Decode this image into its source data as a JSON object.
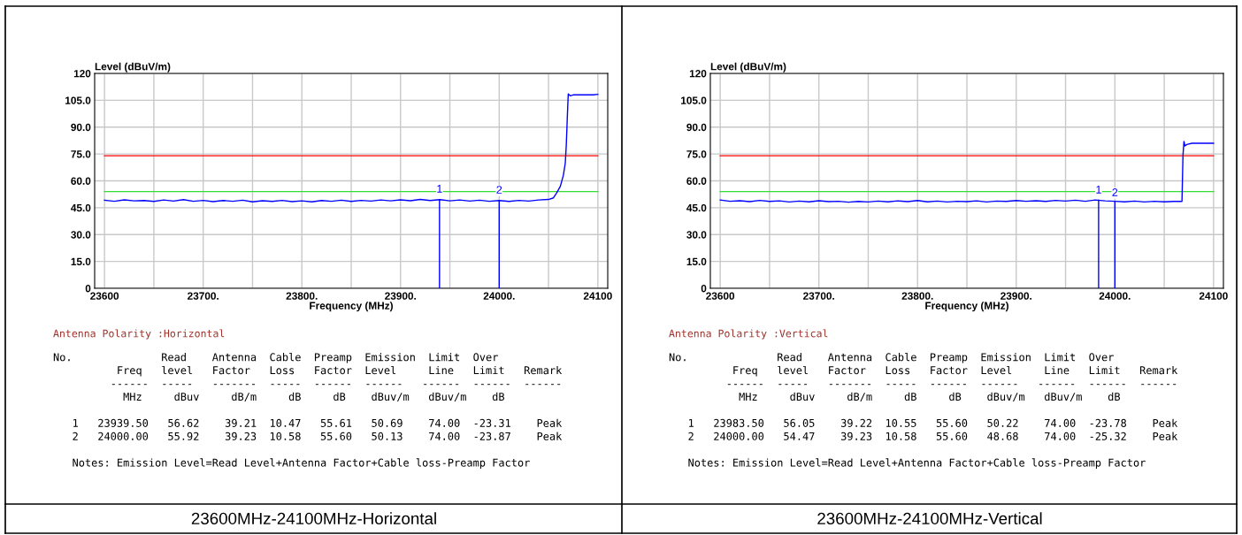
{
  "chart_data": [
    {
      "type": "line",
      "xlabel": "Frequency (MHz)",
      "ylabel": "Level (dBuV/m)",
      "x": [
        23600,
        23610,
        23620,
        23630,
        23640,
        23650,
        23660,
        23670,
        23680,
        23690,
        23700,
        23710,
        23720,
        23730,
        23740,
        23750,
        23760,
        23770,
        23780,
        23790,
        23800,
        23810,
        23820,
        23830,
        23840,
        23850,
        23860,
        23870,
        23880,
        23890,
        23900,
        23910,
        23920,
        23930,
        23940,
        23950,
        23960,
        23970,
        23980,
        23990,
        24000,
        24010,
        24020,
        24030,
        24040,
        24050,
        24055,
        24058,
        24062,
        24065,
        24067,
        24068,
        24069,
        24070,
        24072,
        24075,
        24085,
        24095,
        24100
      ],
      "series": [
        {
          "color": "#0000ff",
          "values": [
            49.2,
            48.6,
            49.4,
            48.8,
            49.0,
            48.5,
            49.3,
            48.7,
            49.5,
            48.6,
            49.1,
            48.4,
            49.0,
            48.6,
            49.2,
            48.3,
            48.9,
            48.5,
            49.1,
            48.4,
            48.8,
            48.3,
            49.0,
            48.6,
            49.2,
            48.5,
            49.1,
            48.7,
            49.3,
            48.8,
            49.4,
            48.9,
            49.6,
            49.0,
            49.5,
            48.8,
            49.3,
            48.7,
            49.2,
            48.6,
            49.0,
            48.5,
            49.1,
            48.7,
            49.3,
            49.6,
            50.5,
            53,
            57,
            63,
            70,
            80,
            95,
            108.5,
            107.5,
            108,
            108,
            108,
            108.3
          ]
        }
      ],
      "xlim": [
        23590,
        24110
      ],
      "ylim": [
        0,
        120
      ],
      "xticks": [
        23600,
        {
          "value": 23650,
          "label": null
        },
        {
          "value": 23700,
          "label": "23700."
        },
        {
          "value": 23750,
          "label": null
        },
        {
          "value": 23800,
          "label": "23800."
        },
        {
          "value": 23850,
          "label": null
        },
        {
          "value": 23900,
          "label": "23900."
        },
        {
          "value": 23950,
          "label": null
        },
        {
          "value": 24000,
          "label": "24000."
        },
        {
          "value": 24050,
          "label": null
        },
        24100
      ],
      "yticks": [
        0,
        {
          "value": 15,
          "label": "15.0"
        },
        {
          "value": 30,
          "label": "30.0"
        },
        {
          "value": 45,
          "label": "45.0"
        },
        {
          "value": 60,
          "label": "60.0"
        },
        {
          "value": 75,
          "label": "75.0"
        },
        {
          "value": 90,
          "label": "90.0"
        },
        {
          "value": 105,
          "label": "105.0"
        },
        120
      ],
      "grid": true,
      "ref_lines": [
        {
          "axis": "y",
          "value": 74,
          "color": "#ff0000"
        },
        {
          "axis": "y",
          "value": 54,
          "color": "#33dd33"
        },
        {
          "axis": "x",
          "value": 23939.5,
          "color": "#0000ff"
        },
        {
          "axis": "x",
          "value": 24000,
          "color": "#0000ff"
        }
      ],
      "annotations": [
        {
          "text": "1",
          "x": 23939.5,
          "y": 50.69
        },
        {
          "text": "2",
          "x": 24000,
          "y": 50.13
        },
        "Antenna Polarity :Horizontal",
        "No.              Read    Antenna  Cable  Preamp  Emission  Limit  Over\n          Freq   level   Factor   Loss   Factor  Level     Line   Limit   Remark\n         ------  -----   -------  -----  ------  ------   ------  ------  ------\n           MHz     dBuv     dB/m     dB     dB    dBuv/m   dBuv/m    dB\n\n   1   23939.50   56.62    39.21  10.47   55.61   50.69    74.00  -23.31    Peak\n   2   24000.00   55.92    39.23  10.58   55.60   50.13    74.00  -23.87    Peak\n\n   Notes: Emission Level=Read Level+Antenna Factor+Cable loss-Preamp Factor",
        "23600MHz-24100MHz-Horizontal"
      ]
    },
    {
      "type": "line",
      "xlabel": "Frequency (MHz)",
      "ylabel": "Level (dBuV/m)",
      "x": [
        23600,
        23610,
        23620,
        23630,
        23640,
        23650,
        23660,
        23670,
        23680,
        23690,
        23700,
        23710,
        23720,
        23730,
        23740,
        23750,
        23760,
        23770,
        23780,
        23790,
        23800,
        23810,
        23820,
        23830,
        23840,
        23850,
        23860,
        23870,
        23880,
        23890,
        23900,
        23910,
        23920,
        23930,
        23940,
        23950,
        23960,
        23970,
        23980,
        23990,
        24000,
        24010,
        24020,
        24030,
        24040,
        24050,
        24060,
        24068,
        24069,
        24070,
        24071,
        24073,
        24078,
        24090,
        24100
      ],
      "series": [
        {
          "color": "#0000ff",
          "values": [
            49.3,
            48.6,
            48.9,
            48.4,
            49.1,
            48.5,
            48.8,
            48.2,
            48.7,
            48.3,
            48.9,
            48.4,
            48.6,
            48.1,
            48.5,
            48.2,
            48.7,
            48.3,
            48.8,
            48.4,
            49.0,
            48.3,
            48.7,
            48.2,
            48.6,
            48.4,
            48.8,
            48.2,
            48.7,
            48.5,
            49.0,
            48.6,
            48.9,
            48.5,
            49.1,
            48.7,
            49.2,
            48.6,
            49.3,
            48.8,
            48.6,
            48.3,
            48.7,
            48.2,
            48.6,
            48.3,
            48.5,
            48.5,
            74,
            82,
            79.5,
            80.3,
            81,
            81,
            81
          ]
        }
      ],
      "xlim": [
        23590,
        24110
      ],
      "ylim": [
        0,
        120
      ],
      "xticks": [
        23600,
        {
          "value": 23650,
          "label": null
        },
        {
          "value": 23700,
          "label": "23700."
        },
        {
          "value": 23750,
          "label": null
        },
        {
          "value": 23800,
          "label": "23800."
        },
        {
          "value": 23850,
          "label": null
        },
        {
          "value": 23900,
          "label": "23900."
        },
        {
          "value": 23950,
          "label": null
        },
        {
          "value": 24000,
          "label": "24000."
        },
        {
          "value": 24050,
          "label": null
        },
        24100
      ],
      "yticks": [
        0,
        {
          "value": 15,
          "label": "15.0"
        },
        {
          "value": 30,
          "label": "30.0"
        },
        {
          "value": 45,
          "label": "45.0"
        },
        {
          "value": 60,
          "label": "60.0"
        },
        {
          "value": 75,
          "label": "75.0"
        },
        {
          "value": 90,
          "label": "90.0"
        },
        {
          "value": 105,
          "label": "105.0"
        },
        120
      ],
      "grid": true,
      "ref_lines": [
        {
          "axis": "y",
          "value": 74,
          "color": "#ff0000"
        },
        {
          "axis": "y",
          "value": 54,
          "color": "#33dd33"
        },
        {
          "axis": "x",
          "value": 23983.5,
          "color": "#0000ff"
        },
        {
          "axis": "x",
          "value": 24000,
          "color": "#0000ff"
        }
      ],
      "annotations": [
        {
          "text": "1",
          "x": 23983.5,
          "y": 50.22
        },
        {
          "text": "2",
          "x": 24000,
          "y": 48.68
        },
        "Antenna Polarity :Vertical",
        "No.              Read    Antenna  Cable  Preamp  Emission  Limit  Over\n          Freq   level   Factor   Loss   Factor  Level     Line   Limit   Remark\n         ------  -----   -------  -----  ------  ------   ------  ------  ------\n           MHz     dBuv     dB/m     dB     dB    dBuv/m   dBuv/m    dB\n\n   1   23983.50   56.05    39.22  10.55   55.60   50.22    74.00  -23.78    Peak\n   2   24000.00   54.47    39.23  10.58   55.60   48.68    74.00  -25.32    Peak\n\n   Notes: Emission Level=Read Level+Antenna Factor+Cable loss-Preamp Factor",
        "23600MHz-24100MHz-Vertical"
      ]
    }
  ]
}
